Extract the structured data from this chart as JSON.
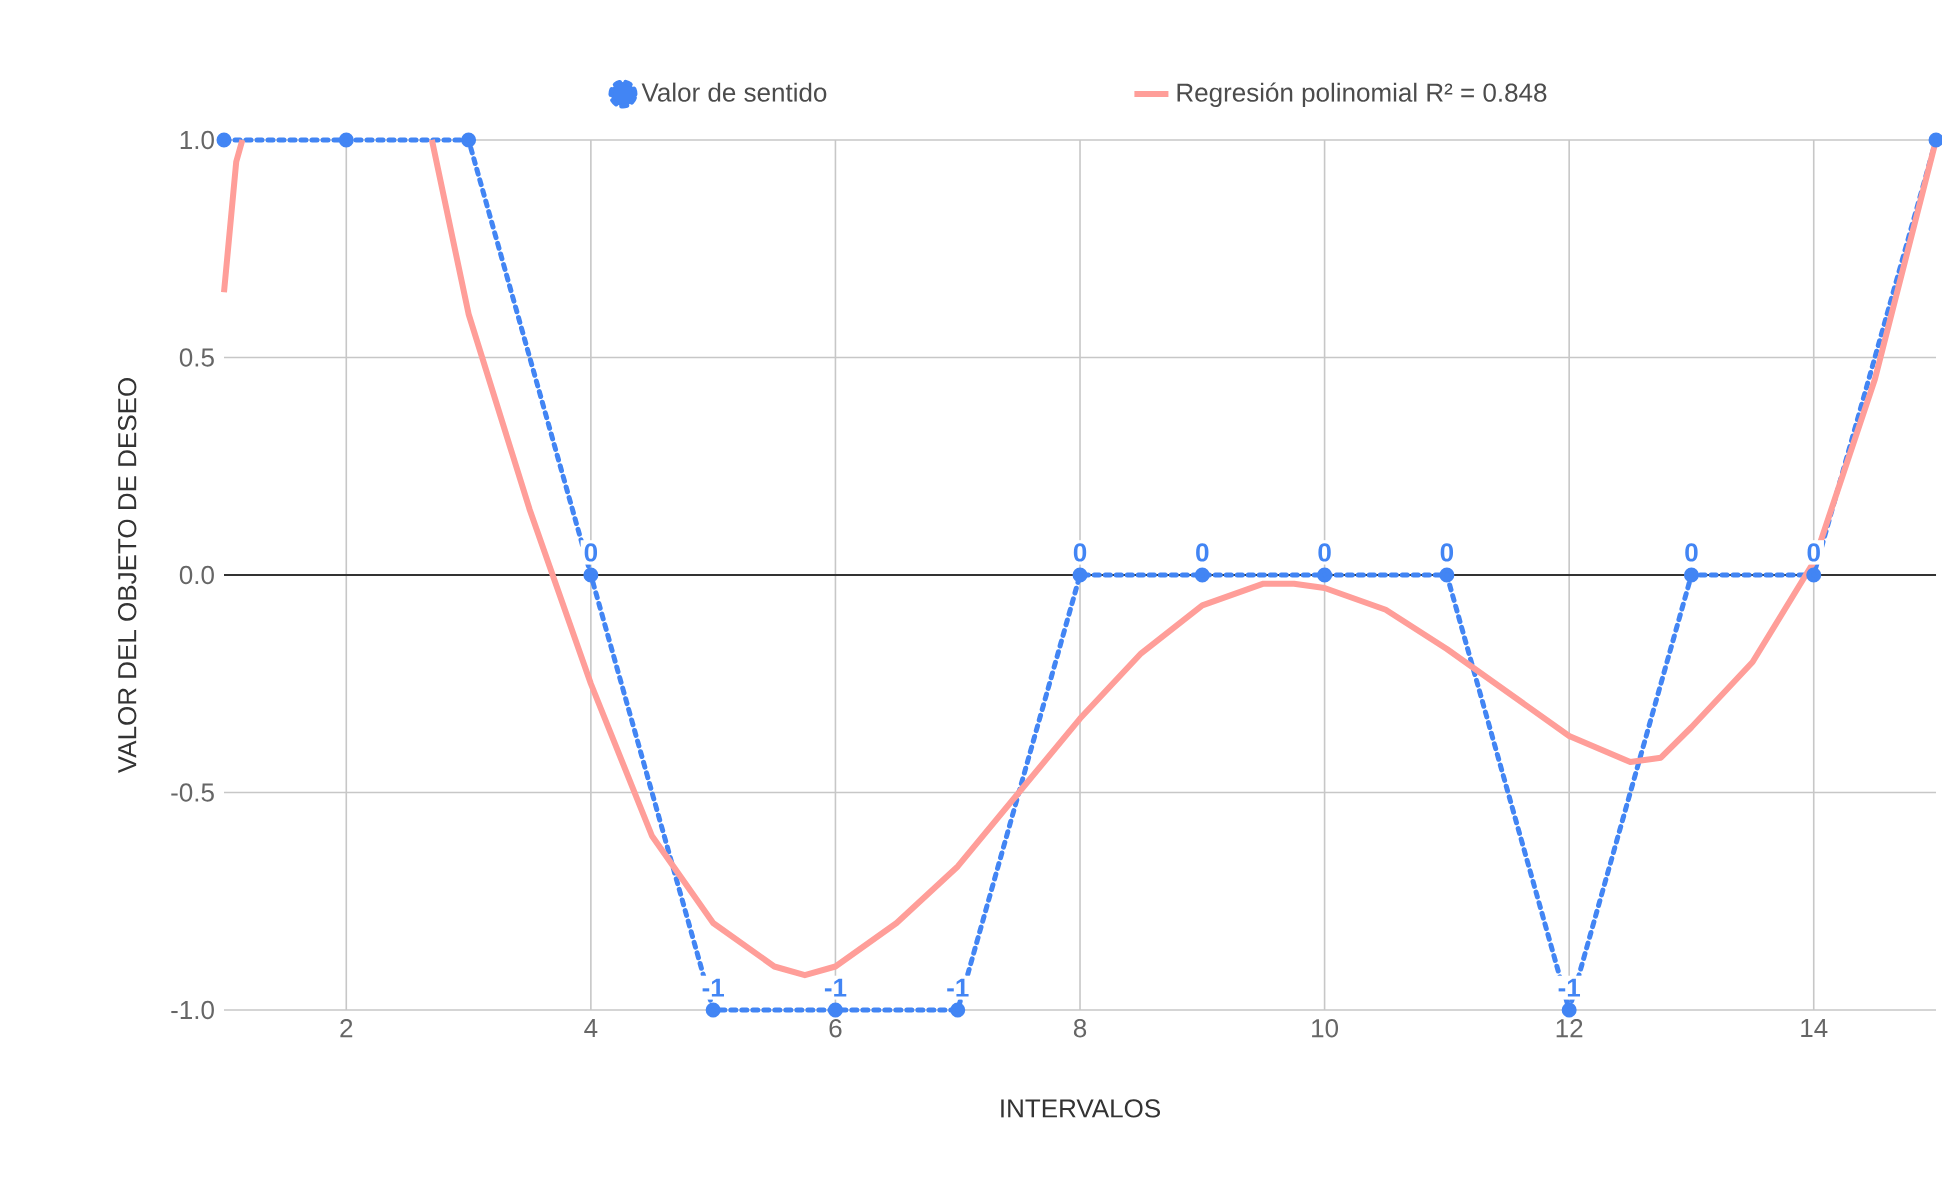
{
  "chart_data": {
    "type": "line",
    "xlabel": "INTERVALOS",
    "ylabel": "VALOR DEL OBJETO DE DESEO",
    "xlim": [
      1,
      15
    ],
    "xticks": [
      2,
      4,
      6,
      8,
      10,
      12,
      14
    ],
    "ylim": [
      -1,
      1
    ],
    "yticks": [
      {
        "value": -1,
        "label": "-1.0"
      },
      {
        "value": -0.5,
        "label": "-0.5"
      },
      {
        "value": 0,
        "label": "0.0"
      },
      {
        "value": 0.5,
        "label": "0.5"
      },
      {
        "value": 1,
        "label": "1.0"
      }
    ],
    "grid": true,
    "legend": "top",
    "ref_lines": [
      {
        "axis": "y",
        "value": 0,
        "color": "#333333"
      }
    ],
    "series": [
      {
        "name": "Valor de sentido",
        "color": "#4285f4",
        "marker": "circle",
        "line_style": "dotted",
        "x": [
          1,
          2,
          3,
          4,
          5,
          6,
          7,
          8,
          9,
          10,
          11,
          12,
          13,
          14,
          15
        ],
        "values": [
          1,
          1,
          1,
          0,
          -1,
          -1,
          -1,
          0,
          0,
          0,
          0,
          -1,
          0,
          0,
          1
        ],
        "value_labels": [
          null,
          null,
          null,
          "0",
          "-1",
          "-1",
          "-1",
          "0",
          "0",
          "0",
          "0",
          "-1",
          "0",
          "0",
          null
        ]
      },
      {
        "name": "Regresión polinomial R² = 0.848",
        "color": "#ff9e99",
        "marker": "none",
        "line_style": "solid",
        "x": [
          1.0,
          1.1,
          1.15,
          1.3,
          2.7,
          3,
          3.5,
          4,
          4.5,
          5,
          5.5,
          5.75,
          6,
          6.5,
          7,
          7.5,
          8,
          8.5,
          9,
          9.5,
          9.75,
          10,
          10.5,
          11,
          11.5,
          12,
          12.5,
          12.75,
          13,
          13.5,
          14,
          14.5,
          15
        ],
        "values": [
          0.65,
          0.95,
          1.0,
          null,
          1.0,
          0.6,
          0.15,
          -0.25,
          -0.6,
          -0.8,
          -0.9,
          -0.92,
          -0.9,
          -0.8,
          -0.67,
          -0.5,
          -0.33,
          -0.18,
          -0.07,
          -0.02,
          -0.02,
          -0.03,
          -0.08,
          -0.17,
          -0.27,
          -0.37,
          -0.43,
          -0.42,
          -0.35,
          -0.2,
          0.03,
          0.45,
          1.0
        ]
      }
    ]
  }
}
